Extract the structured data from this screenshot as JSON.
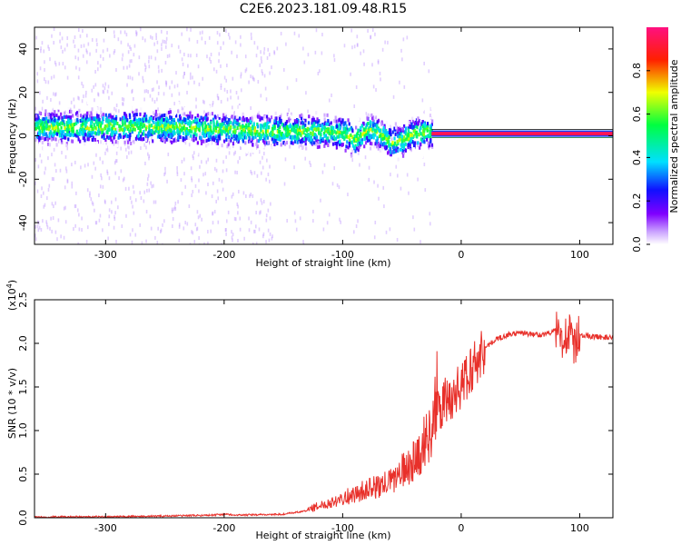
{
  "figure_title": "C2E6.2023.181.09.48.R15",
  "colors": {
    "snr_line": "#e8302a",
    "spectrogram_band": "#1a8cff",
    "background": "#ffffff"
  },
  "chart_data": [
    {
      "type": "heatmap",
      "title": "C2E6.2023.181.09.48.R15",
      "xlabel": "Height of straight line (km)",
      "ylabel": "Frequency (Hz)",
      "xlim": [
        -360,
        128
      ],
      "ylim": [
        -50,
        50
      ],
      "xticks": [
        -300,
        -200,
        -100,
        0,
        100
      ],
      "yticks": [
        -40,
        -20,
        0,
        20,
        40
      ],
      "xtick_labels": [
        "-300",
        "-200",
        "-100",
        "0",
        "100"
      ],
      "ytick_labels": [
        "-40",
        "-20",
        "0",
        "20",
        "40"
      ],
      "colorbar": {
        "label": "Normalized spectral amplitude",
        "range": [
          0.0,
          1.0
        ],
        "ticks": [
          0.0,
          0.2,
          0.4,
          0.6,
          0.8
        ],
        "tick_labels": [
          "0.0",
          "0.2",
          "0.4",
          "0.6",
          "0.8"
        ],
        "colormap": "rainbow (white-purple-blue-cyan-green-yellow-red-magenta)"
      },
      "band_centerline": {
        "x": [
          -360,
          -300,
          -250,
          -200,
          -150,
          -120,
          -100,
          -90,
          -80,
          -70,
          -60,
          -50,
          -40,
          -30,
          -20,
          0,
          50,
          100,
          128
        ],
        "y": [
          4,
          4,
          4,
          3,
          2,
          2,
          1,
          -2,
          3,
          1,
          -3,
          -2,
          1,
          2,
          1,
          1,
          1,
          1,
          1
        ]
      },
      "signal_segment": {
        "x_start": -25,
        "x_end": 128,
        "frequency": 1,
        "amplitude": 0.95
      }
    },
    {
      "type": "line",
      "title": "",
      "xlabel": "Height of straight line (km)",
      "ylabel": "SNR (10 * v/v)",
      "yscale_label": "(x10",
      "yscale_exponent": "4",
      "yscale_close": ")",
      "xlim": [
        -360,
        128
      ],
      "ylim": [
        0,
        2.5
      ],
      "xticks": [
        -300,
        -200,
        -100,
        0,
        100
      ],
      "yticks": [
        0.0,
        0.5,
        1.0,
        1.5,
        2.0,
        2.5
      ],
      "xtick_labels": [
        "-300",
        "-200",
        "-100",
        "0",
        "100"
      ],
      "ytick_labels": [
        "0.0",
        "0.5",
        "1.0",
        "1.5",
        "2.0",
        "2.5"
      ],
      "series": [
        {
          "name": "SNR",
          "x": [
            -360,
            -300,
            -250,
            -210,
            -200,
            -190,
            -150,
            -130,
            -110,
            -100,
            -90,
            -80,
            -70,
            -60,
            -50,
            -40,
            -30,
            -25,
            -20,
            -15,
            -10,
            -5,
            0,
            5,
            10,
            20,
            30,
            40,
            50,
            60,
            70,
            80,
            85,
            90,
            95,
            100,
            110,
            120,
            128
          ],
          "y": [
            0.01,
            0.01,
            0.02,
            0.03,
            0.04,
            0.03,
            0.04,
            0.08,
            0.15,
            0.2,
            0.22,
            0.28,
            0.3,
            0.35,
            0.45,
            0.55,
            0.75,
            0.9,
            1.2,
            1.3,
            1.35,
            1.45,
            1.5,
            1.6,
            1.75,
            1.95,
            2.05,
            2.1,
            2.12,
            2.1,
            2.1,
            2.15,
            2.05,
            2.15,
            1.95,
            2.1,
            2.08,
            2.07,
            2.06
          ]
        }
      ]
    }
  ]
}
